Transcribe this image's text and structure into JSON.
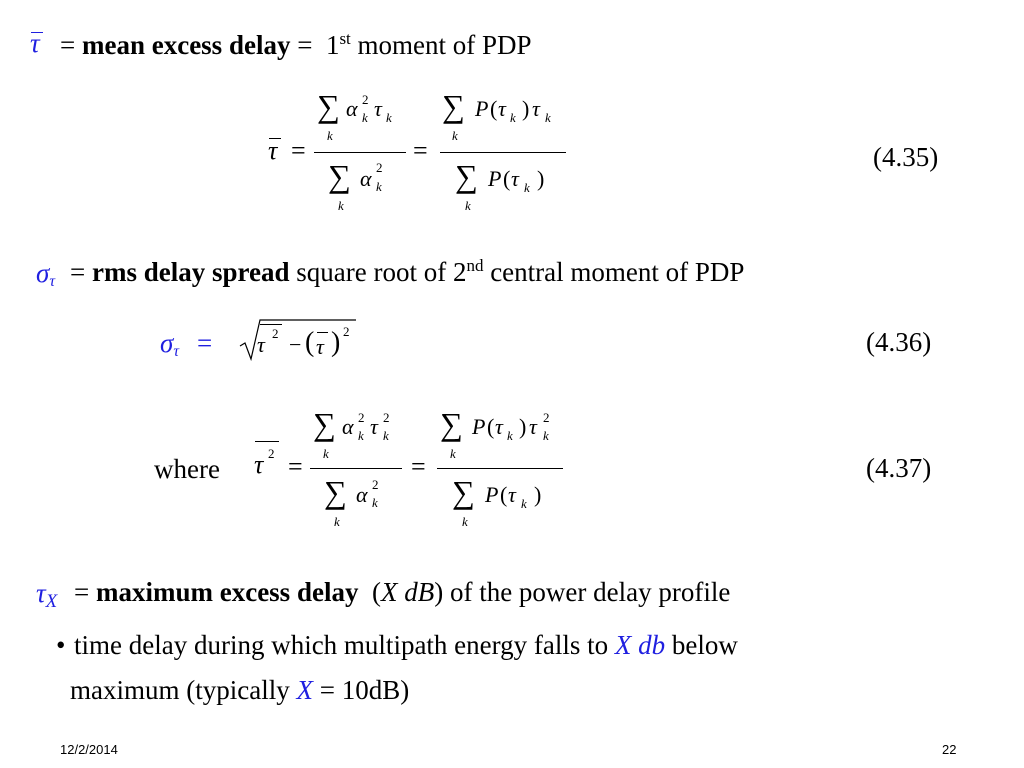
{
  "section1": {
    "tau_symbol": "τ",
    "eq_sign": "=",
    "bold_term": "mean excess delay",
    "eq_sign2": "=",
    "moment_prefix": "1",
    "moment_sup": "st",
    "moment_suffix": "moment of PDP"
  },
  "eq435": {
    "lhs": "τ",
    "equals1": "=",
    "equals2": "=",
    "sum": "∑",
    "k": "k",
    "num1_alpha": "α",
    "num1_sq": "2",
    "num1_tau": "τ",
    "den1_alpha": "α",
    "den1_sq": "2",
    "num2_P": "P",
    "paren_open": "(",
    "paren_close": ")",
    "num2_tau": "τ",
    "num2_tau_k": "τ",
    "den2_P": "P",
    "den2_tau": "τ",
    "number": "(4.35)"
  },
  "section2": {
    "sigma": "σ",
    "tau_sub": "τ",
    "eq_sign": "=",
    "bold_term": "rms delay spread",
    "desc_prefix": "square root of 2",
    "desc_sup": "nd",
    "desc_suffix": "central moment of PDP"
  },
  "eq436": {
    "sigma": "σ",
    "tau_sub": "τ",
    "eq_sign": "=",
    "tau": "τ",
    "sq": "2",
    "minus": "−",
    "paren_open": "(",
    "paren_close": ")",
    "tau2": "τ",
    "sq2": "2",
    "number": "(4.36)"
  },
  "eq437": {
    "where": "where",
    "lhs_tau": "τ",
    "lhs_sq": "2",
    "equals1": "=",
    "equals2": "=",
    "sum": "∑",
    "k": "k",
    "num1_alpha": "α",
    "num1_sq": "2",
    "num1_tau": "τ",
    "num1_tau_sq": "2",
    "den1_alpha": "α",
    "den1_sq": "2",
    "num2_P": "P",
    "paren_open": "(",
    "paren_close": ")",
    "num2_tau": "τ",
    "num2_tau_k": "τ",
    "num2_tau_sq": "2",
    "den2_P": "P",
    "den2_tau": "τ",
    "number": "(4.37)"
  },
  "section3": {
    "tau": "τ",
    "sub_X": "X",
    "eq_sign": "=",
    "bold_term": "maximum excess delay",
    "paren_open": "(",
    "X": "X",
    "dB": "dB",
    "paren_close": ")",
    "suffix": "of the power delay profile"
  },
  "bullet": {
    "dot": "•",
    "line1_prefix": "time delay during which multipath energy falls to",
    "X": "X",
    "db": "db",
    "line1_suffix": "below",
    "line2_prefix": "maximum (typically",
    "X2": "X",
    "line2_suffix": "= 10dB)"
  },
  "footer": {
    "date": "12/2/2014",
    "page": "22"
  },
  "colors": {
    "accent": "#1f1fe0",
    "text": "#000000",
    "background": "#ffffff"
  }
}
